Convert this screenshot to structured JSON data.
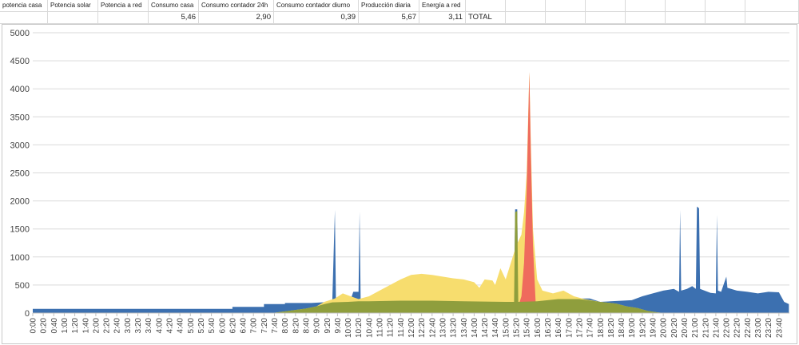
{
  "spreadsheet": {
    "labels": [
      "potencia casa",
      "Potencia solar",
      "Potencia a red",
      "Consumo casa",
      "Consumo contador 24h",
      "Consumo contador diurno",
      "Producción diaria",
      "Energía a red"
    ],
    "values": [
      "5,46",
      "2,90",
      "0,39",
      "5,67",
      "3,11"
    ],
    "total_label": "TOTAL"
  },
  "chart_data": {
    "type": "area",
    "title": "",
    "xlabel": "",
    "ylabel": "",
    "ylim": [
      0,
      5000
    ],
    "yticks": [
      "0",
      "500",
      "1000",
      "1500",
      "2000",
      "2500",
      "3000",
      "3500",
      "4000",
      "4500",
      "5000"
    ],
    "xticks": [
      "0:00",
      "0:20",
      "0:40",
      "1:00",
      "1:20",
      "1:40",
      "2:00",
      "2:20",
      "2:40",
      "3:00",
      "3:20",
      "3:40",
      "4:00",
      "4:20",
      "4:40",
      "5:00",
      "5:20",
      "5:40",
      "6:00",
      "6:20",
      "6:40",
      "7:00",
      "7:20",
      "7:40",
      "8:00",
      "8:20",
      "8:40",
      "9:00",
      "9:20",
      "9:40",
      "10:00",
      "10:20",
      "10:40",
      "11:00",
      "11:20",
      "11:40",
      "12:00",
      "12:20",
      "12:40",
      "13:00",
      "13:20",
      "13:40",
      "14:00",
      "14:20",
      "14:40",
      "15:00",
      "15:20",
      "15:40",
      "16:00",
      "16:20",
      "16:40",
      "17:00",
      "17:20",
      "17:40",
      "18:00",
      "18:20",
      "18:40",
      "19:00",
      "19:20",
      "19:40",
      "20:00",
      "20:20",
      "20:40",
      "21:00",
      "21:20",
      "21:40",
      "22:00",
      "22:20",
      "22:40",
      "23:00",
      "23:20",
      "23:40"
    ],
    "grid": true,
    "legend": "none",
    "colors": {
      "house": "#3c70b0",
      "solar": "#f7dd6e",
      "grid_export": "#ef6b5d",
      "overlap": "#8f9e3d"
    },
    "series": [
      {
        "key": "house",
        "values": [
          [
            0,
            75
          ],
          [
            380,
            75
          ],
          [
            380,
            110
          ],
          [
            440,
            110
          ],
          [
            440,
            160
          ],
          [
            480,
            160
          ],
          [
            480,
            180
          ],
          [
            530,
            180
          ],
          [
            540,
            185
          ],
          [
            560,
            195
          ],
          [
            570,
            200
          ],
          [
            575,
            1840
          ],
          [
            577,
            210
          ],
          [
            590,
            230
          ],
          [
            605,
            240
          ],
          [
            610,
            380
          ],
          [
            620,
            380
          ],
          [
            622,
            1810
          ],
          [
            624,
            240
          ],
          [
            660,
            250
          ],
          [
            700,
            240
          ],
          [
            760,
            220
          ],
          [
            820,
            210
          ],
          [
            900,
            200
          ],
          [
            916,
            200
          ],
          [
            918,
            1850
          ],
          [
            922,
            1850
          ],
          [
            924,
            200
          ],
          [
            960,
            210
          ],
          [
            1000,
            260
          ],
          [
            1060,
            260
          ],
          [
            1080,
            200
          ],
          [
            1140,
            230
          ],
          [
            1160,
            300
          ],
          [
            1180,
            350
          ],
          [
            1200,
            400
          ],
          [
            1220,
            430
          ],
          [
            1230,
            380
          ],
          [
            1232,
            1840
          ],
          [
            1234,
            400
          ],
          [
            1245,
            430
          ],
          [
            1255,
            480
          ],
          [
            1262,
            430
          ],
          [
            1264,
            1900
          ],
          [
            1268,
            1870
          ],
          [
            1270,
            430
          ],
          [
            1290,
            360
          ],
          [
            1300,
            350
          ],
          [
            1302,
            1750
          ],
          [
            1304,
            400
          ],
          [
            1310,
            380
          ],
          [
            1320,
            650
          ],
          [
            1322,
            450
          ],
          [
            1340,
            400
          ],
          [
            1360,
            380
          ],
          [
            1380,
            350
          ],
          [
            1400,
            380
          ],
          [
            1420,
            370
          ],
          [
            1430,
            200
          ],
          [
            1439,
            160
          ]
        ]
      },
      {
        "key": "solar",
        "values": [
          [
            0,
            0
          ],
          [
            455,
            0
          ],
          [
            480,
            30
          ],
          [
            520,
            80
          ],
          [
            540,
            120
          ],
          [
            555,
            200
          ],
          [
            565,
            230
          ],
          [
            575,
            260
          ],
          [
            590,
            350
          ],
          [
            605,
            300
          ],
          [
            620,
            250
          ],
          [
            640,
            300
          ],
          [
            660,
            400
          ],
          [
            680,
            500
          ],
          [
            700,
            600
          ],
          [
            720,
            680
          ],
          [
            740,
            700
          ],
          [
            760,
            680
          ],
          [
            780,
            650
          ],
          [
            800,
            620
          ],
          [
            820,
            600
          ],
          [
            840,
            550
          ],
          [
            850,
            450
          ],
          [
            860,
            600
          ],
          [
            875,
            580
          ],
          [
            880,
            500
          ],
          [
            890,
            800
          ],
          [
            900,
            600
          ],
          [
            910,
            900
          ],
          [
            920,
            1200
          ],
          [
            930,
            1400
          ],
          [
            935,
            1800
          ],
          [
            940,
            2500
          ],
          [
            945,
            4300
          ],
          [
            948,
            3000
          ],
          [
            952,
            1500
          ],
          [
            960,
            600
          ],
          [
            970,
            400
          ],
          [
            990,
            350
          ],
          [
            1010,
            400
          ],
          [
            1030,
            300
          ],
          [
            1050,
            250
          ],
          [
            1080,
            200
          ],
          [
            1110,
            170
          ],
          [
            1130,
            120
          ],
          [
            1150,
            90
          ],
          [
            1170,
            40
          ],
          [
            1190,
            10
          ],
          [
            1205,
            0
          ],
          [
            1439,
            0
          ]
        ]
      },
      {
        "key": "grid_export",
        "values": [
          [
            0,
            0
          ],
          [
            920,
            0
          ],
          [
            930,
            300
          ],
          [
            935,
            900
          ],
          [
            940,
            2200
          ],
          [
            945,
            4300
          ],
          [
            948,
            2800
          ],
          [
            952,
            1200
          ],
          [
            958,
            0
          ],
          [
            1439,
            0
          ]
        ]
      },
      {
        "key": "overlap",
        "values": [
          [
            0,
            0
          ],
          [
            455,
            0
          ],
          [
            480,
            30
          ],
          [
            520,
            80
          ],
          [
            540,
            120
          ],
          [
            555,
            160
          ],
          [
            570,
            190
          ],
          [
            600,
            200
          ],
          [
            620,
            210
          ],
          [
            640,
            210
          ],
          [
            700,
            220
          ],
          [
            760,
            220
          ],
          [
            820,
            210
          ],
          [
            900,
            200
          ],
          [
            916,
            200
          ],
          [
            918,
            1800
          ],
          [
            922,
            1820
          ],
          [
            924,
            200
          ],
          [
            960,
            210
          ],
          [
            1000,
            250
          ],
          [
            1040,
            250
          ],
          [
            1080,
            200
          ],
          [
            1110,
            170
          ],
          [
            1130,
            120
          ],
          [
            1150,
            90
          ],
          [
            1170,
            40
          ],
          [
            1190,
            10
          ],
          [
            1205,
            0
          ],
          [
            1439,
            0
          ]
        ]
      }
    ]
  }
}
